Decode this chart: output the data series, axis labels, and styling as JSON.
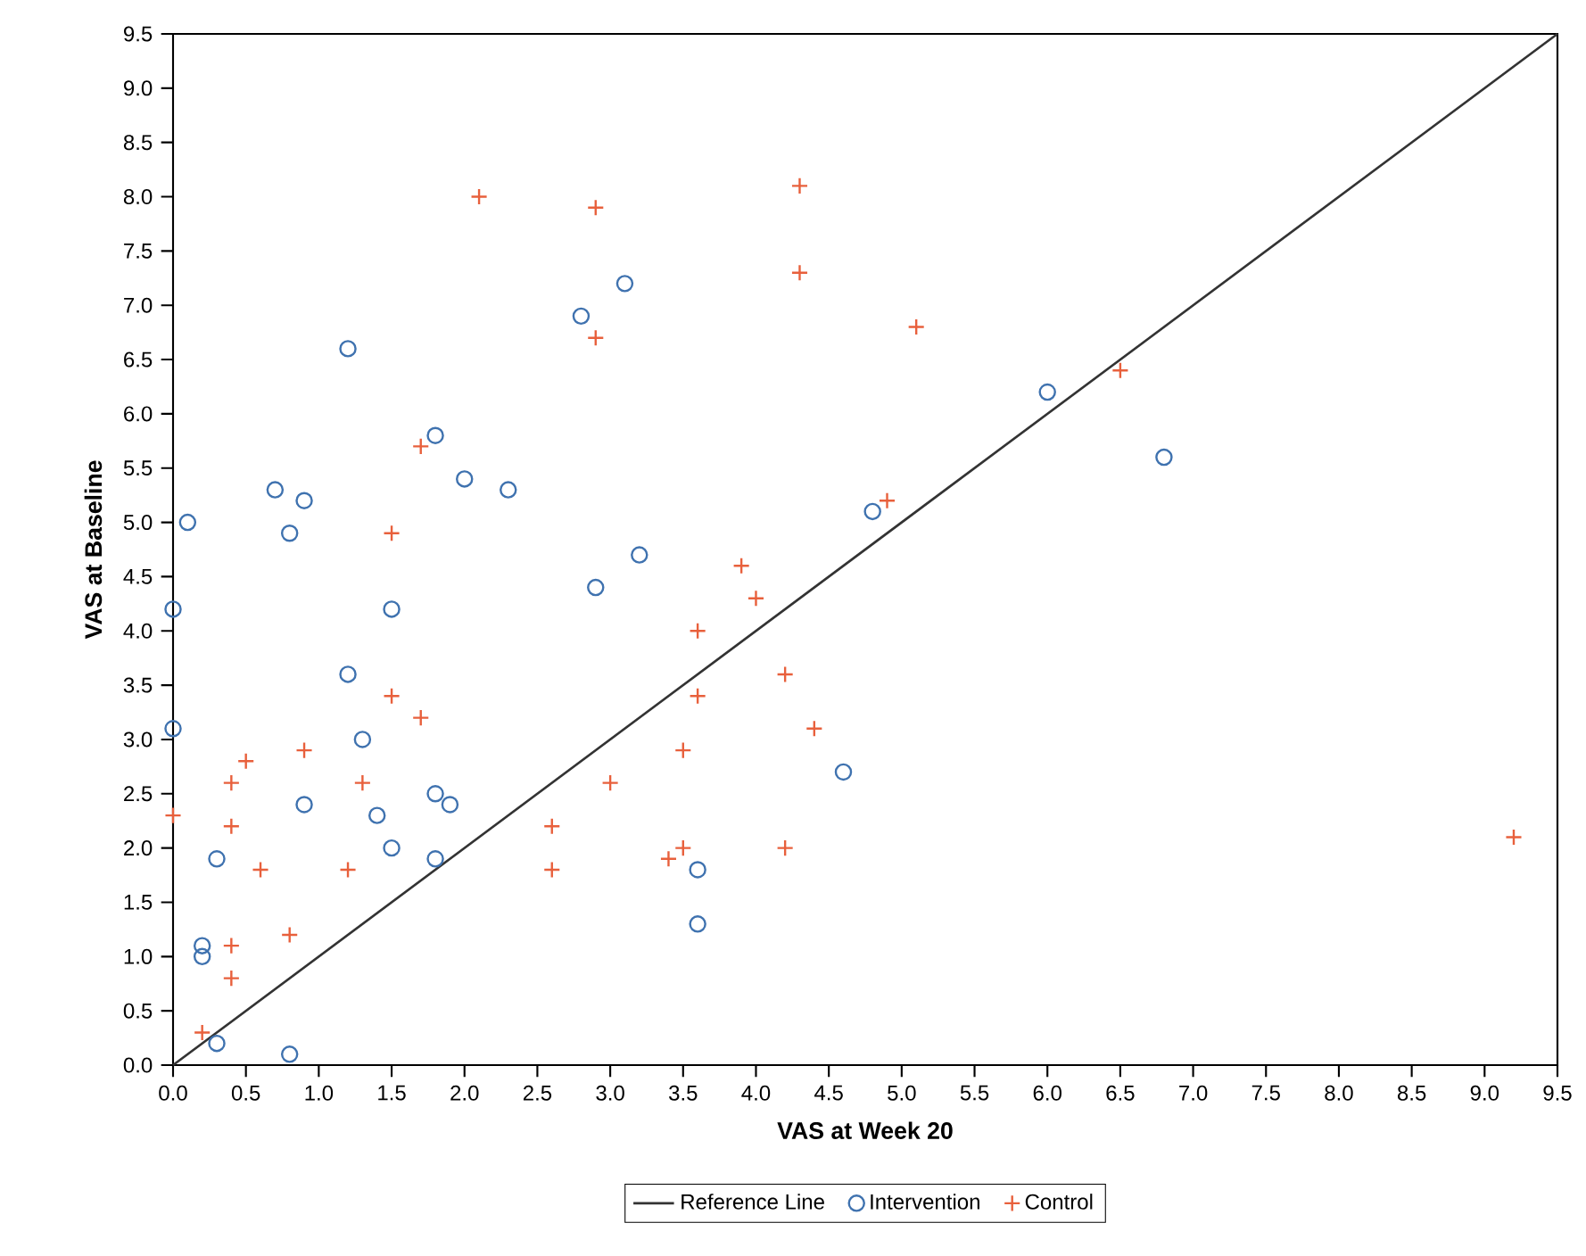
{
  "chart_data": {
    "type": "scatter",
    "xlabel": "VAS at Week 20",
    "ylabel": "VAS at Baseline",
    "xlim": [
      0,
      9.5
    ],
    "ylim": [
      0,
      9.5
    ],
    "xticks": [
      {
        "value": 0,
        "label": "0.0"
      },
      {
        "value": 0.5,
        "label": "0.5"
      },
      {
        "value": 1,
        "label": "1.0"
      },
      {
        "value": 1.5,
        "label": "1.5"
      },
      {
        "value": 2,
        "label": "2.0"
      },
      {
        "value": 2.5,
        "label": "2.5"
      },
      {
        "value": 3,
        "label": "3.0"
      },
      {
        "value": 3.5,
        "label": "3.5"
      },
      {
        "value": 4,
        "label": "4.0"
      },
      {
        "value": 4.5,
        "label": "4.5"
      },
      {
        "value": 5,
        "label": "5.0"
      },
      {
        "value": 5.5,
        "label": "5.5"
      },
      {
        "value": 6,
        "label": "6.0"
      },
      {
        "value": 6.5,
        "label": "6.5"
      },
      {
        "value": 7,
        "label": "7.0"
      },
      {
        "value": 7.5,
        "label": "7.5"
      },
      {
        "value": 8,
        "label": "8.0"
      },
      {
        "value": 8.5,
        "label": "8.5"
      },
      {
        "value": 9,
        "label": "9.0"
      },
      {
        "value": 9.5,
        "label": "9.5"
      }
    ],
    "yticks": [
      {
        "value": 0,
        "label": "0.0"
      },
      {
        "value": 0.5,
        "label": "0.5"
      },
      {
        "value": 1,
        "label": "1.0"
      },
      {
        "value": 1.5,
        "label": "1.5"
      },
      {
        "value": 2,
        "label": "2.0"
      },
      {
        "value": 2.5,
        "label": "2.5"
      },
      {
        "value": 3,
        "label": "3.0"
      },
      {
        "value": 3.5,
        "label": "3.5"
      },
      {
        "value": 4,
        "label": "4.0"
      },
      {
        "value": 4.5,
        "label": "4.5"
      },
      {
        "value": 5,
        "label": "5.0"
      },
      {
        "value": 5.5,
        "label": "5.5"
      },
      {
        "value": 6,
        "label": "6.0"
      },
      {
        "value": 6.5,
        "label": "6.5"
      },
      {
        "value": 7,
        "label": "7.0"
      },
      {
        "value": 7.5,
        "label": "7.5"
      },
      {
        "value": 8,
        "label": "8.0"
      },
      {
        "value": 8.5,
        "label": "8.5"
      },
      {
        "value": 9,
        "label": "9.0"
      },
      {
        "value": 9.5,
        "label": "9.5"
      }
    ],
    "legend": "bottom",
    "series": [
      {
        "name": "Reference Line",
        "type": "line",
        "color": "#333333",
        "marker": "none",
        "line_style": "solid",
        "x": [
          0,
          9.5
        ],
        "values": [
          0,
          9.5
        ]
      },
      {
        "name": "Intervention",
        "type": "scatter",
        "color": "#3f72af",
        "marker": "circle",
        "x": [
          0,
          0,
          0.1,
          0.2,
          0.2,
          0.3,
          0.3,
          0.7,
          0.8,
          0.9,
          0.8,
          0.9,
          1.2,
          1.2,
          1.3,
          1.4,
          1.5,
          1.5,
          1.8,
          1.8,
          1.8,
          1.9,
          2.0,
          2.3,
          2.8,
          3.1,
          2.9,
          3.2,
          3.6,
          3.6,
          4.6,
          4.8,
          6.0,
          6.8
        ],
        "values": [
          4.2,
          3.1,
          5.0,
          1.1,
          1.0,
          1.9,
          0.2,
          5.3,
          4.9,
          5.2,
          0.1,
          2.4,
          6.6,
          3.6,
          3.0,
          2.3,
          4.2,
          2.0,
          5.8,
          2.5,
          1.9,
          2.4,
          5.4,
          5.3,
          6.9,
          7.2,
          4.4,
          4.7,
          1.8,
          1.3,
          2.7,
          5.1,
          6.2,
          5.6
        ]
      },
      {
        "name": "Control",
        "type": "scatter",
        "color": "#e8603c",
        "marker": "cross",
        "x": [
          0,
          0.2,
          0.4,
          0.4,
          0.4,
          0.4,
          0.5,
          0.6,
          0.8,
          0.9,
          1.2,
          1.3,
          1.5,
          1.5,
          1.7,
          1.7,
          2.1,
          2.6,
          2.6,
          2.9,
          2.9,
          3.0,
          3.4,
          3.5,
          3.5,
          3.6,
          3.6,
          3.9,
          4.0,
          4.2,
          4.2,
          4.3,
          4.3,
          4.4,
          4.9,
          5.1,
          6.5,
          9.2
        ],
        "values": [
          2.3,
          0.3,
          2.6,
          2.2,
          1.1,
          0.8,
          2.8,
          1.8,
          1.2,
          2.9,
          1.8,
          2.6,
          4.9,
          3.4,
          5.7,
          3.2,
          8.0,
          2.2,
          1.8,
          7.9,
          6.7,
          2.6,
          1.9,
          2.9,
          2.0,
          4.0,
          3.4,
          4.6,
          4.3,
          3.6,
          2.0,
          8.1,
          7.3,
          3.1,
          5.2,
          6.8,
          6.4,
          2.1
        ]
      }
    ]
  }
}
